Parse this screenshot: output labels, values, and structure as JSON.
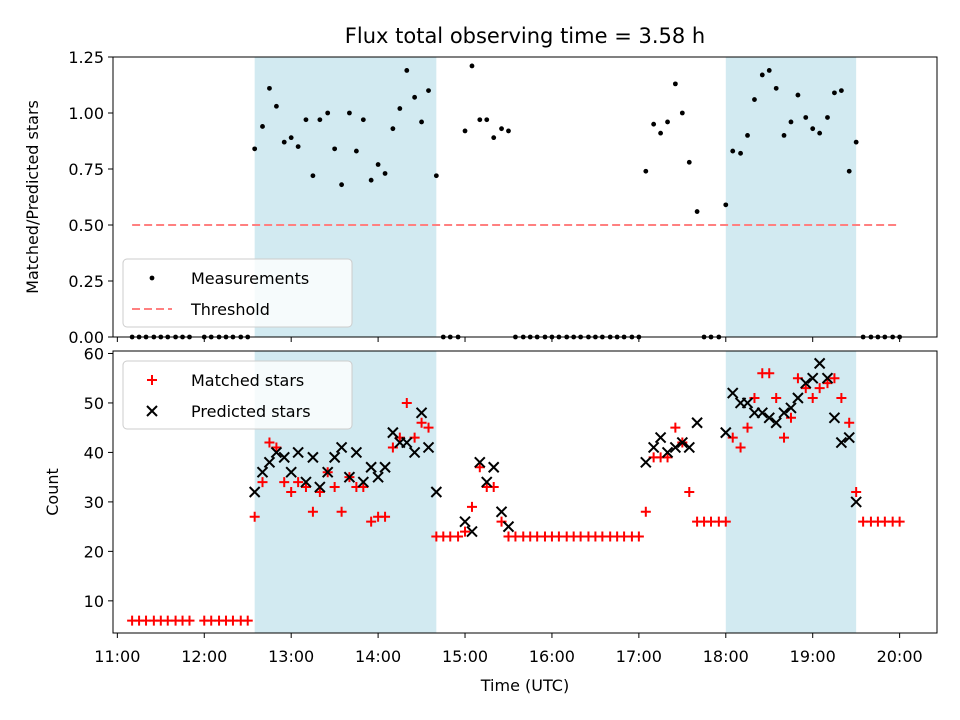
{
  "chart_data": {
    "title": "Flux total observing time = 3.58 h",
    "xlabel": "Time (UTC)",
    "x_unit": "hours (UTC)",
    "xlim": [
      10.95,
      20.43
    ],
    "x_ticks": [
      {
        "value": 11,
        "label": "11:00"
      },
      {
        "value": 12,
        "label": "12:00"
      },
      {
        "value": 13,
        "label": "13:00"
      },
      {
        "value": 14,
        "label": "14:00"
      },
      {
        "value": 15,
        "label": "15:00"
      },
      {
        "value": 16,
        "label": "16:00"
      },
      {
        "value": 17,
        "label": "17:00"
      },
      {
        "value": 18,
        "label": "18:00"
      },
      {
        "value": 19,
        "label": "19:00"
      },
      {
        "value": 20,
        "label": "20:00"
      }
    ],
    "observing_windows": [
      {
        "start": 12.58,
        "end": 14.67,
        "color": "#add8e6"
      },
      {
        "start": 18.0,
        "end": 19.5,
        "color": "#add8e6"
      }
    ],
    "panels": [
      {
        "type": "scatter",
        "ylabel": "Matched/Predicted stars",
        "ylim": [
          0,
          1.25
        ],
        "yticks": [
          {
            "value": 0,
            "label": "0.00"
          },
          {
            "value": 0.25,
            "label": "0.25"
          },
          {
            "value": 0.5,
            "label": "0.50"
          },
          {
            "value": 0.75,
            "label": "0.75"
          },
          {
            "value": 1.0,
            "label": "1.00"
          },
          {
            "value": 1.25,
            "label": "1.25"
          }
        ],
        "legend": {
          "position": "lower-left",
          "entries": [
            {
              "label": "Measurements",
              "marker": "dot",
              "color": "#000000"
            },
            {
              "label": "Threshold",
              "marker": "dashed-line",
              "color": "#ff8080"
            }
          ]
        },
        "threshold": {
          "value": 0.5,
          "x_start": 11.17,
          "x_end": 20.0,
          "color": "#ff8080"
        },
        "series": [
          {
            "name": "Measurements",
            "color": "#000000",
            "x": [
              11.17,
              11.25,
              11.33,
              11.42,
              11.5,
              11.58,
              11.67,
              11.75,
              11.83,
              12.0,
              12.08,
              12.17,
              12.25,
              12.33,
              12.42,
              12.5,
              12.58,
              12.67,
              12.75,
              12.83,
              12.92,
              13.0,
              13.08,
              13.17,
              13.25,
              13.33,
              13.42,
              13.5,
              13.58,
              13.67,
              13.75,
              13.83,
              13.92,
              14.0,
              14.08,
              14.17,
              14.25,
              14.33,
              14.42,
              14.5,
              14.58,
              14.67,
              14.75,
              14.83,
              14.92,
              15.0,
              15.08,
              15.17,
              15.25,
              15.33,
              15.42,
              15.5,
              15.58,
              15.67,
              15.75,
              15.83,
              15.92,
              16.0,
              16.08,
              16.17,
              16.25,
              16.33,
              16.42,
              16.5,
              16.58,
              16.67,
              16.75,
              16.83,
              16.92,
              17.0,
              17.08,
              17.17,
              17.25,
              17.33,
              17.42,
              17.5,
              17.58,
              17.67,
              17.75,
              17.83,
              17.92,
              18.0,
              18.08,
              18.17,
              18.25,
              18.33,
              18.42,
              18.5,
              18.58,
              18.67,
              18.75,
              18.83,
              18.92,
              19.0,
              19.08,
              19.17,
              19.25,
              19.33,
              19.42,
              19.5,
              19.58,
              19.67,
              19.75,
              19.83,
              19.92,
              20.0
            ],
            "y": [
              0,
              0,
              0,
              0,
              0,
              0,
              0,
              0,
              0,
              0,
              0,
              0,
              0,
              0,
              0,
              0,
              0.84,
              0.94,
              1.11,
              1.03,
              0.87,
              0.89,
              0.85,
              0.97,
              0.72,
              0.97,
              1.0,
              0.84,
              0.68,
              1.0,
              0.83,
              0.97,
              0.7,
              0.77,
              0.73,
              0.93,
              1.02,
              1.19,
              1.07,
              0.96,
              1.1,
              0.72,
              0,
              0,
              0,
              0.92,
              1.21,
              0.97,
              0.97,
              0.89,
              0.93,
              0.92,
              0,
              0,
              0,
              0,
              0,
              0,
              0,
              0,
              0,
              0,
              0,
              0,
              0,
              0,
              0,
              0,
              0,
              0,
              0.74,
              0.95,
              0.91,
              0.96,
              1.13,
              1.0,
              0.78,
              0.56,
              0,
              0,
              0,
              0.59,
              0.83,
              0.82,
              0.9,
              1.06,
              1.17,
              1.19,
              1.11,
              0.9,
              0.96,
              1.08,
              0.98,
              0.93,
              0.91,
              0.98,
              1.09,
              1.1,
              0.74,
              0.87,
              0,
              0,
              0,
              0,
              0,
              0
            ]
          }
        ]
      },
      {
        "type": "scatter",
        "ylabel": "Count",
        "ylim": [
          3.5,
          60.5
        ],
        "yticks": [
          {
            "value": 10,
            "label": "10"
          },
          {
            "value": 20,
            "label": "20"
          },
          {
            "value": 30,
            "label": "30"
          },
          {
            "value": 40,
            "label": "40"
          },
          {
            "value": 50,
            "label": "50"
          },
          {
            "value": 60,
            "label": "60"
          }
        ],
        "legend": {
          "position": "upper-left",
          "entries": [
            {
              "label": "Matched stars",
              "marker": "plus",
              "color": "#ff0000"
            },
            {
              "label": "Predicted stars",
              "marker": "x",
              "color": "#000000"
            }
          ]
        },
        "series": [
          {
            "name": "Matched stars",
            "marker": "plus",
            "color": "#ff0000",
            "x": [
              11.17,
              11.25,
              11.33,
              11.42,
              11.5,
              11.58,
              11.67,
              11.75,
              11.83,
              12.0,
              12.08,
              12.17,
              12.25,
              12.33,
              12.42,
              12.5,
              12.58,
              12.67,
              12.75,
              12.83,
              12.92,
              13.0,
              13.08,
              13.17,
              13.25,
              13.33,
              13.42,
              13.5,
              13.58,
              13.67,
              13.75,
              13.83,
              13.92,
              14.0,
              14.08,
              14.17,
              14.25,
              14.33,
              14.42,
              14.5,
              14.58,
              14.67,
              14.75,
              14.83,
              14.92,
              15.0,
              15.08,
              15.17,
              15.25,
              15.33,
              15.42,
              15.5,
              15.58,
              15.67,
              15.75,
              15.83,
              15.92,
              16.0,
              16.08,
              16.17,
              16.25,
              16.33,
              16.42,
              16.5,
              16.58,
              16.67,
              16.75,
              16.83,
              16.92,
              17.0,
              17.08,
              17.17,
              17.25,
              17.33,
              17.42,
              17.5,
              17.58,
              17.67,
              17.75,
              17.83,
              17.92,
              18.0,
              18.08,
              18.17,
              18.25,
              18.33,
              18.42,
              18.5,
              18.58,
              18.67,
              18.75,
              18.83,
              18.92,
              19.0,
              19.08,
              19.17,
              19.25,
              19.33,
              19.42,
              19.5,
              19.58,
              19.67,
              19.75,
              19.83,
              19.92,
              20.0
            ],
            "y": [
              6,
              6,
              6,
              6,
              6,
              6,
              6,
              6,
              6,
              6,
              6,
              6,
              6,
              6,
              6,
              6,
              27,
              34,
              42,
              41,
              34,
              32,
              34,
              33,
              28,
              32,
              36,
              33,
              28,
              35,
              33,
              33,
              26,
              27,
              27,
              41,
              43,
              50,
              43,
              46,
              45,
              23,
              23,
              23,
              23,
              24,
              29,
              37,
              33,
              33,
              26,
              23,
              23,
              23,
              23,
              23,
              23,
              23,
              23,
              23,
              23,
              23,
              23,
              23,
              23,
              23,
              23,
              23,
              23,
              23,
              28,
              39,
              39,
              39,
              45,
              42,
              32,
              26,
              26,
              26,
              26,
              26,
              43,
              41,
              45,
              51,
              56,
              56,
              51,
              43,
              47,
              55,
              53,
              51,
              53,
              54,
              55,
              51,
              46,
              32,
              26,
              26,
              26,
              26,
              26,
              26
            ]
          },
          {
            "name": "Predicted stars",
            "marker": "x",
            "color": "#000000",
            "x": [
              12.58,
              12.67,
              12.75,
              12.83,
              12.92,
              13.0,
              13.08,
              13.17,
              13.25,
              13.33,
              13.42,
              13.5,
              13.58,
              13.67,
              13.75,
              13.83,
              13.92,
              14.0,
              14.08,
              14.17,
              14.25,
              14.33,
              14.42,
              14.5,
              14.58,
              14.67,
              15.0,
              15.08,
              15.17,
              15.25,
              15.33,
              15.42,
              15.5,
              17.08,
              17.17,
              17.25,
              17.33,
              17.42,
              17.5,
              17.58,
              17.67,
              18.0,
              18.08,
              18.17,
              18.25,
              18.33,
              18.42,
              18.5,
              18.58,
              18.67,
              18.75,
              18.83,
              18.92,
              19.0,
              19.08,
              19.17,
              19.25,
              19.33,
              19.42,
              19.5
            ],
            "y": [
              32,
              36,
              38,
              40,
              39,
              36,
              40,
              34,
              39,
              33,
              36,
              39,
              41,
              35,
              40,
              34,
              37,
              35,
              37,
              44,
              42,
              42,
              40,
              48,
              41,
              32,
              26,
              24,
              38,
              34,
              37,
              28,
              25,
              38,
              41,
              43,
              40,
              41,
              42,
              41,
              46,
              44,
              52,
              50,
              50,
              48,
              48,
              47,
              46,
              48,
              49,
              51,
              54,
              55,
              58,
              55,
              47,
              42,
              43,
              30
            ]
          }
        ]
      }
    ]
  }
}
